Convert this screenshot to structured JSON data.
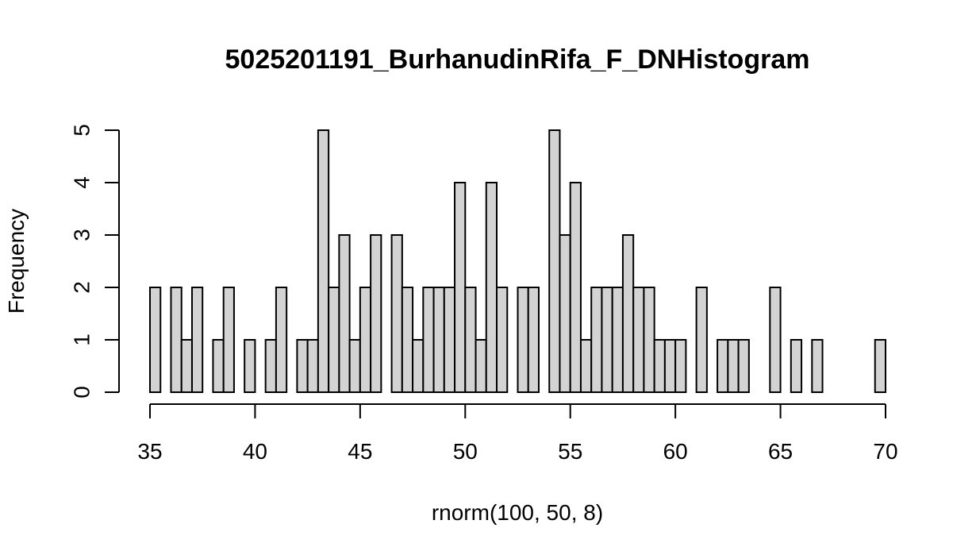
{
  "chart_data": {
    "type": "bar",
    "title": "5025201191_BurhanudinRifa_F_DNHistogram",
    "xlabel": "rnorm(100, 50, 8)",
    "ylabel": "Frequency",
    "xlim": [
      35,
      70
    ],
    "ylim": [
      0,
      5
    ],
    "bin_width": 0.5,
    "bins": [
      35,
      35.5,
      36,
      36.5,
      37,
      37.5,
      38,
      38.5,
      39,
      39.5,
      40,
      40.5,
      41,
      41.5,
      42,
      42.5,
      43,
      43.5,
      44,
      44.5,
      45,
      45.5,
      46,
      46.5,
      47,
      47.5,
      48,
      48.5,
      49,
      49.5,
      50,
      50.5,
      51,
      51.5,
      52,
      52.5,
      53,
      53.5,
      54,
      54.5,
      55,
      55.5,
      56,
      56.5,
      57,
      57.5,
      58,
      58.5,
      59,
      59.5,
      60,
      60.5,
      61,
      61.5,
      62,
      62.5,
      63,
      63.5,
      64,
      64.5,
      65,
      65.5,
      66,
      66.5,
      67,
      67.5,
      68,
      68.5,
      69,
      69.5
    ],
    "values": [
      2,
      0,
      2,
      1,
      2,
      0,
      1,
      2,
      0,
      1,
      0,
      1,
      2,
      0,
      1,
      1,
      5,
      2,
      3,
      1,
      2,
      3,
      0,
      3,
      2,
      1,
      2,
      2,
      2,
      4,
      2,
      1,
      4,
      2,
      0,
      2,
      2,
      0,
      5,
      3,
      4,
      1,
      2,
      2,
      2,
      3,
      2,
      2,
      1,
      1,
      1,
      0,
      2,
      0,
      1,
      1,
      1,
      0,
      0,
      2,
      0,
      1,
      0,
      1,
      0,
      0,
      0,
      0,
      0,
      1
    ],
    "x_ticks": [
      "35",
      "40",
      "45",
      "50",
      "55",
      "60",
      "65",
      "70"
    ],
    "y_ticks": [
      "0",
      "1",
      "2",
      "3",
      "4",
      "5"
    ],
    "bar_color": "#d3d3d3",
    "edge_color": "#000000",
    "grid": false
  }
}
